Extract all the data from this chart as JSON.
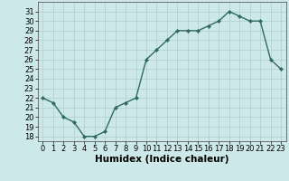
{
  "x": [
    0,
    1,
    2,
    3,
    4,
    5,
    6,
    7,
    8,
    9,
    10,
    11,
    12,
    13,
    14,
    15,
    16,
    17,
    18,
    19,
    20,
    21,
    22,
    23
  ],
  "y": [
    22,
    21.5,
    20,
    19.5,
    18,
    18,
    18.5,
    21,
    21.5,
    22,
    26,
    27,
    28,
    29,
    29,
    29,
    29.5,
    30,
    31,
    30.5,
    30,
    30,
    26,
    25
  ],
  "line_color": "#2e6b5e",
  "marker": "D",
  "marker_size": 2.2,
  "bg_color": "#cde8e8",
  "grid_color": "#b0cece",
  "xlabel": "Humidex (Indice chaleur)",
  "ylim": [
    17.5,
    32
  ],
  "xlim": [
    -0.5,
    23.5
  ],
  "yticks": [
    18,
    19,
    20,
    21,
    22,
    23,
    24,
    25,
    26,
    27,
    28,
    29,
    30,
    31
  ],
  "xticks": [
    0,
    1,
    2,
    3,
    4,
    5,
    6,
    7,
    8,
    9,
    10,
    11,
    12,
    13,
    14,
    15,
    16,
    17,
    18,
    19,
    20,
    21,
    22,
    23
  ],
  "tick_fontsize": 6,
  "label_fontsize": 7.5,
  "line_width": 1.0
}
